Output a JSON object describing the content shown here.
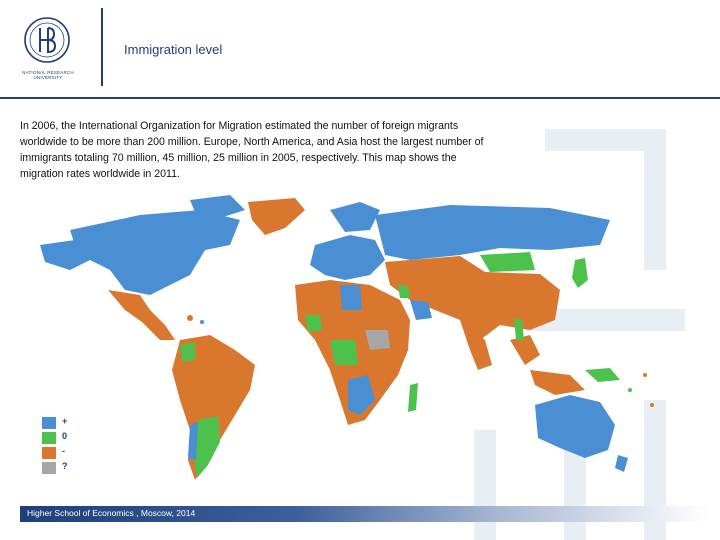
{
  "header": {
    "title": "Immigration level",
    "logo_caption": "NATIONAL RESEARCH UNIVERSITY"
  },
  "body": {
    "paragraph": "In 2006, the International Organization for Migration estimated the number of foreign migrants worldwide to be more than 200 million. Europe, North America, and Asia host the largest number of immigrants totaling 70 million, 45 million, 25 million in 2005, respectively. This map shows the migration rates worldwide in 2011."
  },
  "legend": {
    "items": [
      {
        "label": "+",
        "color": "#4a8fd4"
      },
      {
        "label": "0",
        "color": "#4cc24c"
      },
      {
        "label": "-",
        "color": "#d9772e"
      },
      {
        "label": "?",
        "color": "#a6a6a6"
      }
    ]
  },
  "colors": {
    "accent": "#1e3f78",
    "positive": "#4a8fd4",
    "zero": "#4cc24c",
    "negative": "#d9772e",
    "unknown": "#a6a6a6"
  },
  "footer": {
    "text": "Higher School of Economics , Moscow, 2014"
  }
}
